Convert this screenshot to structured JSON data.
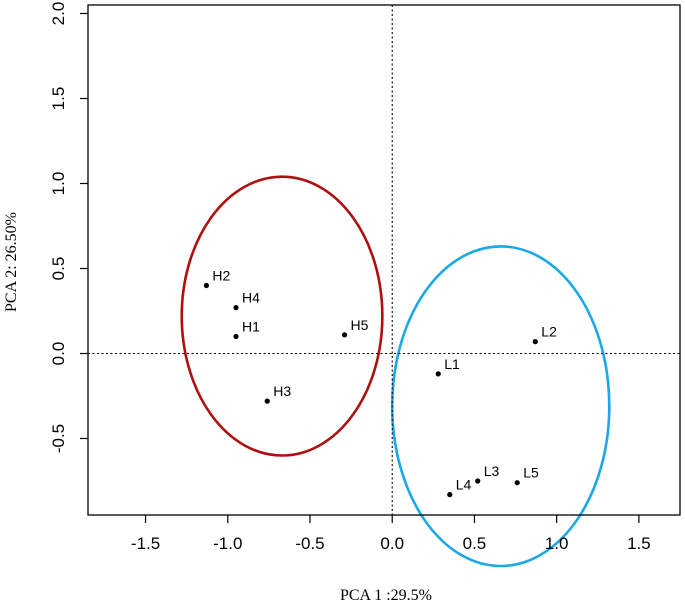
{
  "chart_data": {
    "type": "scatter",
    "xlabel": "PCA 1 :29.5%",
    "ylabel": "PCA 2: 26.50%",
    "xlim": [
      -1.85,
      1.75
    ],
    "ylim": [
      -0.95,
      2.05
    ],
    "x_ticks": [
      -1.5,
      -1.0,
      -0.5,
      0.0,
      0.5,
      1.0,
      1.5
    ],
    "x_tick_labels": [
      "-1.5",
      "-1.0",
      "-0.5",
      "0.0",
      "0.5",
      "1.0",
      "1.5"
    ],
    "y_ticks": [
      -0.5,
      0.0,
      0.5,
      1.0,
      1.5,
      2.0
    ],
    "y_tick_labels": [
      "-0.5",
      "0.0",
      "0.5",
      "1.0",
      "1.5",
      "2.0"
    ],
    "reference_lines": {
      "x": 0,
      "y": 0,
      "style": "dotted"
    },
    "grid": false,
    "points": [
      {
        "label": "H2",
        "x": -1.13,
        "y": 0.4
      },
      {
        "label": "H4",
        "x": -0.95,
        "y": 0.27
      },
      {
        "label": "H1",
        "x": -0.95,
        "y": 0.1
      },
      {
        "label": "H5",
        "x": -0.29,
        "y": 0.11
      },
      {
        "label": "H3",
        "x": -0.76,
        "y": -0.28
      },
      {
        "label": "L2",
        "x": 0.87,
        "y": 0.07
      },
      {
        "label": "L1",
        "x": 0.28,
        "y": -0.12
      },
      {
        "label": "L3",
        "x": 0.52,
        "y": -0.75
      },
      {
        "label": "L5",
        "x": 0.76,
        "y": -0.76
      },
      {
        "label": "L4",
        "x": 0.35,
        "y": -0.83
      }
    ],
    "ellipses": [
      {
        "group": "H",
        "color": "#b00f0f",
        "cx": -0.67,
        "cy": 0.22,
        "rx": 0.61,
        "ry": 0.82
      },
      {
        "group": "L",
        "color": "#1aa8e8",
        "cx": 0.66,
        "cy": -0.31,
        "rx": 0.66,
        "ry": 0.94
      }
    ]
  }
}
